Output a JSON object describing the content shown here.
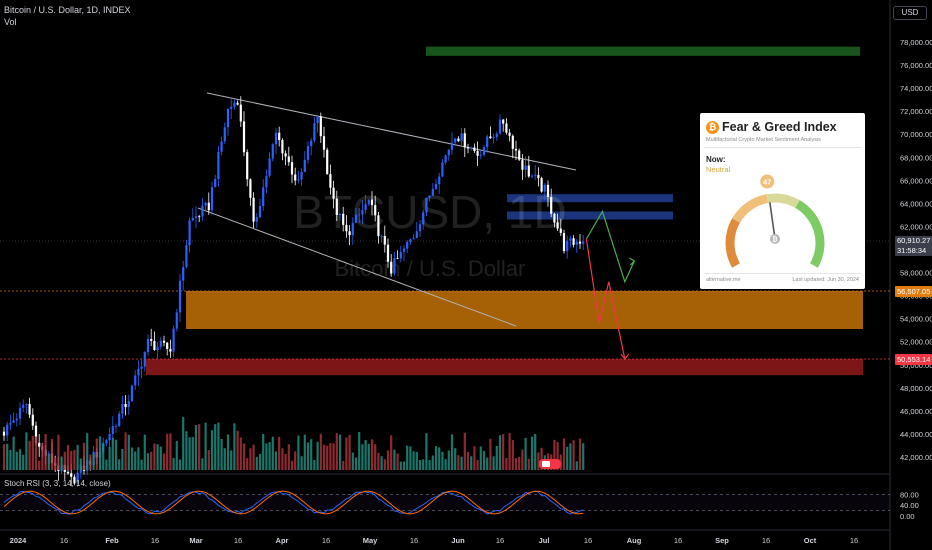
{
  "header": {
    "symbol_line": "Bitcoin / U.S. Dollar, 1D, INDEX",
    "volume_label": "Vol",
    "currency": "USD"
  },
  "watermark": {
    "ticker": "BTCUSD, 1D",
    "name": "Bitcoin / U.S. Dollar"
  },
  "price_tags": [
    {
      "label": "60,910.27",
      "sub": "31:58:34",
      "color": "#3a3e4a"
    },
    {
      "label": "56,507.05",
      "color": "#e07d10"
    },
    {
      "label": "50,553.14",
      "color": "#f23645"
    }
  ],
  "colors": {
    "up": "#2962ff",
    "down": "#ffffff",
    "vol_up": "#1e8c7e",
    "vol_down": "#a8313a",
    "resistance_zone": "#1e3a8a",
    "support_zone_orange": "#b86a05",
    "support_zone_red": "#8b1a1a",
    "target_zone_green": "#1b5e20"
  },
  "fear_greed": {
    "title": "Fear & Greed Index",
    "subtitle": "Multifactorial Crypto Market Sentiment Analysis",
    "now_label": "Now:",
    "status": "Neutral",
    "value": "47",
    "value_num": 47,
    "site": "alternative.me",
    "updated": "Last updated: Jun 30, 2024"
  },
  "rsi": {
    "label": "Stoch RSI (3, 3, 14, 14, close)",
    "ticks": [
      "80.00",
      "40.00",
      "0.00"
    ]
  },
  "chart_data": {
    "type": "candlestick",
    "x_tick_labels": [
      "2024",
      "16",
      "Feb",
      "16",
      "Mar",
      "16",
      "Apr",
      "16",
      "May",
      "16",
      "Jun",
      "16",
      "Jul",
      "16",
      "Aug",
      "16",
      "Sep",
      "16",
      "Oct",
      "16"
    ],
    "y_tick_labels": [
      "78,000.00",
      "76,000.00",
      "74,000.00",
      "72,000.00",
      "70,000.00",
      "68,000.00",
      "66,000.00",
      "64,000.00",
      "62,000.00",
      "60,000.00",
      "58,000.00",
      "56,000.00",
      "54,000.00",
      "52,000.00",
      "50,000.00",
      "48,000.00",
      "46,000.00",
      "44,000.00",
      "42,000.00"
    ],
    "ylim": [
      41000,
      79500
    ],
    "close_series": [
      {
        "date": "2024-01-01",
        "close": 44200
      },
      {
        "date": "2024-01-08",
        "close": 46600
      },
      {
        "date": "2024-01-12",
        "close": 42800
      },
      {
        "date": "2024-01-22",
        "close": 39900
      },
      {
        "date": "2024-01-31",
        "close": 42600
      },
      {
        "date": "2024-02-09",
        "close": 47100
      },
      {
        "date": "2024-02-15",
        "close": 51900
      },
      {
        "date": "2024-02-22",
        "close": 51300
      },
      {
        "date": "2024-02-28",
        "close": 62400
      },
      {
        "date": "2024-03-05",
        "close": 63800
      },
      {
        "date": "2024-03-11",
        "close": 72100
      },
      {
        "date": "2024-03-14",
        "close": 73100
      },
      {
        "date": "2024-03-19",
        "close": 61900
      },
      {
        "date": "2024-03-26",
        "close": 70000
      },
      {
        "date": "2024-04-02",
        "close": 65600
      },
      {
        "date": "2024-04-08",
        "close": 71600
      },
      {
        "date": "2024-04-13",
        "close": 64000
      },
      {
        "date": "2024-04-17",
        "close": 61300
      },
      {
        "date": "2024-04-24",
        "close": 64200
      },
      {
        "date": "2024-05-01",
        "close": 58300
      },
      {
        "date": "2024-05-08",
        "close": 61200
      },
      {
        "date": "2024-05-15",
        "close": 66200
      },
      {
        "date": "2024-05-21",
        "close": 70100
      },
      {
        "date": "2024-05-28",
        "close": 68300
      },
      {
        "date": "2024-06-05",
        "close": 71100
      },
      {
        "date": "2024-06-11",
        "close": 67300
      },
      {
        "date": "2024-06-18",
        "close": 65100
      },
      {
        "date": "2024-06-24",
        "close": 60300
      },
      {
        "date": "2024-06-30",
        "close": 60910
      }
    ],
    "zones": [
      {
        "name": "target",
        "from": 76800,
        "to": 77600
      },
      {
        "name": "resistance_1",
        "from": 64100,
        "to": 64800
      },
      {
        "name": "resistance_2",
        "from": 62600,
        "to": 63300
      },
      {
        "name": "support_orange",
        "from": 53100,
        "to": 56400
      },
      {
        "name": "support_red",
        "from": 49100,
        "to": 50500
      }
    ],
    "projection_up": [
      [
        60910,
        "2024-07-01"
      ],
      [
        63300,
        "2024-07-06"
      ],
      [
        57200,
        "2024-07-13"
      ],
      [
        59000,
        "2024-07-16"
      ]
    ],
    "projection_down": [
      [
        60910,
        "2024-07-01"
      ],
      [
        53600,
        "2024-07-05"
      ],
      [
        57200,
        "2024-07-08"
      ],
      [
        50500,
        "2024-07-13"
      ]
    ]
  }
}
